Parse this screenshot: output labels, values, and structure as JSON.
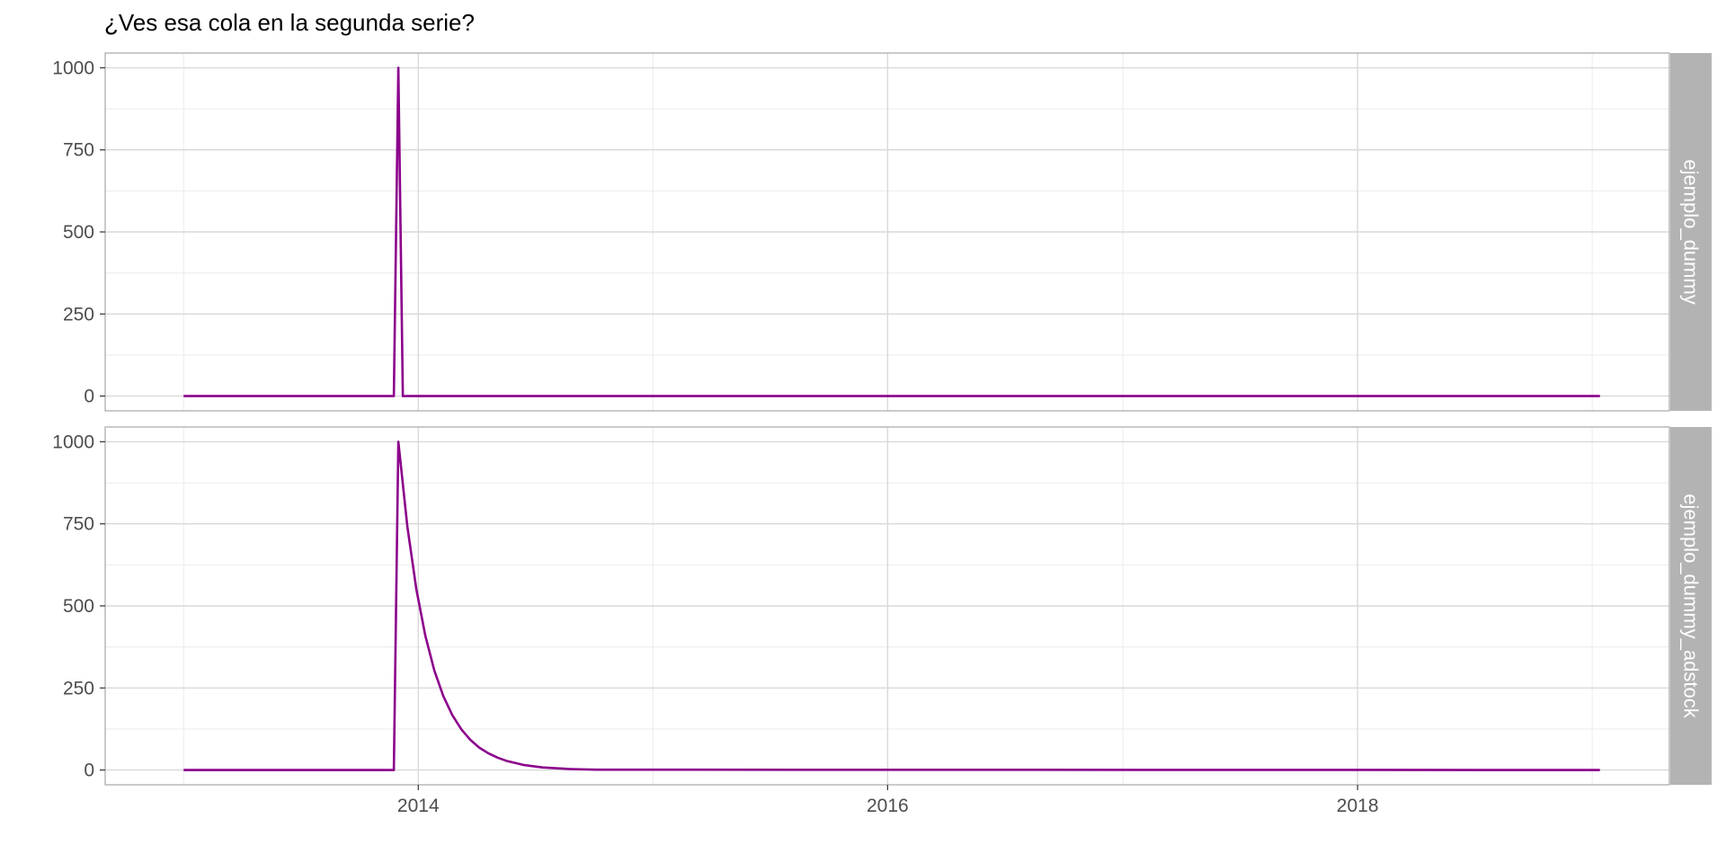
{
  "chart_data": {
    "type": "line",
    "title": "¿Ves esa cola en la segunda serie?",
    "xlabel": "",
    "ylabel": "",
    "x_axis": {
      "type": "date",
      "range": [
        "2012-09-01",
        "2019-05-01"
      ],
      "ticks": [
        "2014-01-01",
        "2016-01-01",
        "2018-01-01"
      ],
      "tick_labels": [
        "2014",
        "2016",
        "2018"
      ]
    },
    "y_axis": {
      "range": [
        -45,
        1045
      ],
      "ticks": [
        0,
        250,
        500,
        750,
        1000
      ],
      "tick_labels": [
        "0",
        "250",
        "500",
        "750",
        "1000"
      ]
    },
    "grid": true,
    "line_color": "#8b008b",
    "facets": [
      {
        "strip_label": "ejemplo_dummy",
        "series": {
          "x": [
            "2013-01-01",
            "2013-11-24",
            "2013-12-01",
            "2013-12-08",
            "2019-01-13"
          ],
          "values": [
            0,
            0,
            1000,
            0,
            0
          ]
        }
      },
      {
        "strip_label": "ejemplo_dummy_adstock",
        "series": {
          "x": [
            "2013-01-01",
            "2013-11-24",
            "2013-12-01",
            "2013-12-15",
            "2013-12-29",
            "2014-01-12",
            "2014-01-26",
            "2014-02-09",
            "2014-02-23",
            "2014-03-09",
            "2014-03-23",
            "2014-04-06",
            "2014-04-20",
            "2014-05-04",
            "2014-05-18",
            "2014-06-15",
            "2014-07-13",
            "2014-08-24",
            "2014-10-05",
            "2019-01-13"
          ],
          "values": [
            0,
            0,
            1000,
            742,
            551,
            409,
            303,
            225,
            167,
            124,
            92,
            68,
            51,
            38,
            28,
            15,
            8,
            3,
            1,
            0
          ]
        }
      }
    ]
  }
}
